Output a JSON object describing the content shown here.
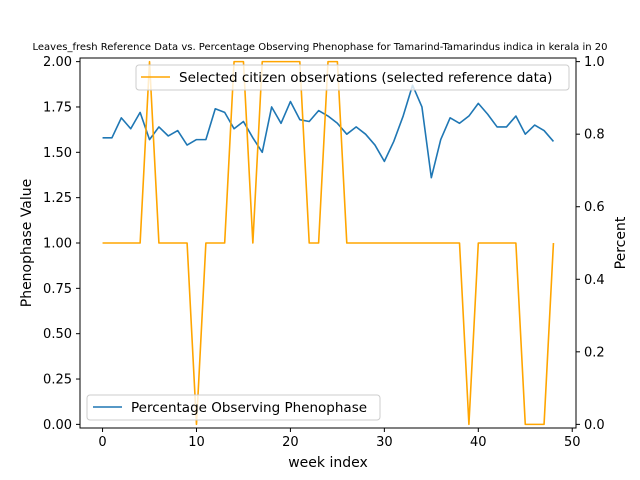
{
  "chart_data": {
    "type": "line",
    "title": "Leaves_fresh Reference Data vs. Percentage Observing Phenophase for Tamarind-Tamarindus indica in kerala in 20",
    "xlabel": "week index",
    "ylabel_left": "Phenophase Value",
    "ylabel_right": "Percent",
    "xlim": [
      -2.4,
      50.4
    ],
    "ylim_left": [
      -0.02,
      2.02
    ],
    "ylim_right": [
      -0.01,
      1.01
    ],
    "x_ticks": [
      "0",
      "10",
      "20",
      "30",
      "40",
      "50"
    ],
    "y_ticks_left": [
      "0.00",
      "0.25",
      "0.50",
      "0.75",
      "1.00",
      "1.25",
      "1.50",
      "1.75",
      "2.00"
    ],
    "y_ticks_right": [
      "0.0",
      "0.2",
      "0.4",
      "0.6",
      "0.8",
      "1.0"
    ],
    "legends": {
      "left_series": {
        "label": "Percentage Observing Phenophase",
        "position": "lower-left"
      },
      "right_series": {
        "label": "Selected citizen observations (selected reference data)",
        "position": "upper-right"
      }
    },
    "series": [
      {
        "name": "Percentage Observing Phenophase",
        "axis": "left",
        "color": "#1f77b4",
        "x": [
          0,
          1,
          2,
          3,
          4,
          5,
          6,
          7,
          8,
          9,
          10,
          11,
          12,
          13,
          14,
          15,
          16,
          17,
          18,
          19,
          20,
          21,
          22,
          23,
          24,
          25,
          26,
          27,
          28,
          29,
          30,
          31,
          32,
          33,
          34,
          35,
          36,
          37,
          38,
          39,
          40,
          41,
          42,
          43,
          44,
          45,
          46,
          47,
          48
        ],
        "values": [
          1.58,
          1.58,
          1.69,
          1.63,
          1.72,
          1.57,
          1.64,
          1.59,
          1.62,
          1.54,
          1.57,
          1.57,
          1.74,
          1.72,
          1.63,
          1.67,
          1.58,
          1.5,
          1.75,
          1.66,
          1.78,
          1.68,
          1.67,
          1.73,
          1.7,
          1.66,
          1.6,
          1.64,
          1.6,
          1.54,
          1.45,
          1.56,
          1.7,
          1.87,
          1.75,
          1.36,
          1.57,
          1.69,
          1.66,
          1.7,
          1.77,
          1.71,
          1.64,
          1.64,
          1.7,
          1.6,
          1.65,
          1.62,
          1.56
        ]
      },
      {
        "name": "Selected citizen observations (selected reference data)",
        "axis": "right",
        "color": "#ffa500",
        "x": [
          0,
          1,
          2,
          3,
          4,
          5,
          6,
          7,
          8,
          9,
          10,
          11,
          12,
          13,
          14,
          15,
          16,
          17,
          18,
          19,
          20,
          21,
          22,
          23,
          24,
          25,
          26,
          27,
          28,
          29,
          30,
          31,
          32,
          33,
          34,
          35,
          36,
          37,
          38,
          39,
          40,
          41,
          42,
          43,
          44,
          45,
          46,
          47,
          48
        ],
        "values": [
          0.5,
          0.5,
          0.5,
          0.5,
          0.5,
          1,
          0.5,
          0.5,
          0.5,
          0.5,
          0,
          0.5,
          0.5,
          0.5,
          1,
          1,
          0.5,
          1,
          1,
          1,
          1,
          1,
          0.5,
          0.5,
          1,
          1,
          0.5,
          0.5,
          0.5,
          0.5,
          0.5,
          0.5,
          0.5,
          0.5,
          0.5,
          0.5,
          0.5,
          0.5,
          0.5,
          0,
          0.5,
          0.5,
          0.5,
          0.5,
          0.5,
          0,
          0,
          0,
          0.5
        ]
      }
    ]
  }
}
